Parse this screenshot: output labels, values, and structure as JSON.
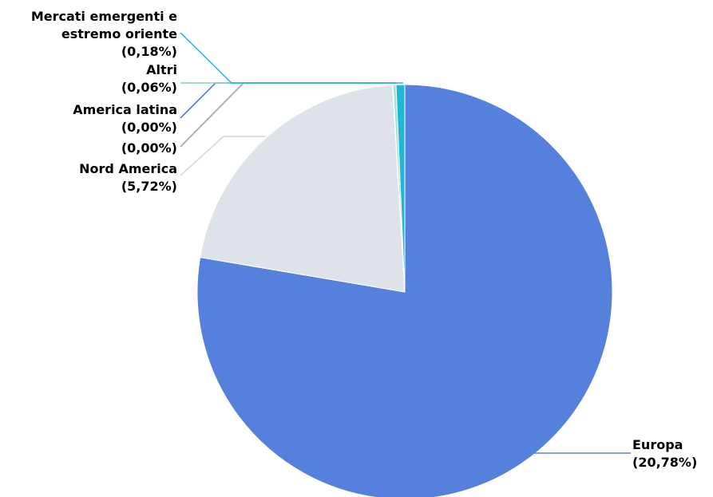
{
  "chart_data": {
    "type": "pie",
    "title": "",
    "start_angle_deg": 0,
    "slices": [
      {
        "name": "Europa",
        "label_lines": [
          "Europa",
          "(20,78%)"
        ],
        "value": 78.03,
        "color": "#5580DB",
        "line_color": "#5580DB"
      },
      {
        "name": "Nord America",
        "label_lines": [
          "Nord America",
          "(5,72%)"
        ],
        "value": 21.48,
        "color": "#DEE3E9",
        "line_color": "#D0D6DE"
      },
      {
        "name": "",
        "label_lines": [
          "(0,00%)"
        ],
        "value": 0.02,
        "color": "#C3CBD4",
        "line_color": "#A9B2BC"
      },
      {
        "name": "America latina",
        "label_lines": [
          "America latina",
          "(0,00%)"
        ],
        "value": 0.02,
        "color": "#4A6FC4",
        "line_color": "#4A6FC4"
      },
      {
        "name": "Altri",
        "label_lines": [
          "Altri",
          "(0,06%)"
        ],
        "value": 0.23,
        "color": "#9FE0D8",
        "line_color": "#7ED3C9"
      },
      {
        "name": "Mercati emergenti e estremo oriente",
        "label_lines": [
          "Mercati emergenti e",
          "estremo oriente",
          "(0,18%)"
        ],
        "value": 0.68,
        "color": "#1FB7D4",
        "line_color": "#1FB7D4"
      }
    ]
  }
}
